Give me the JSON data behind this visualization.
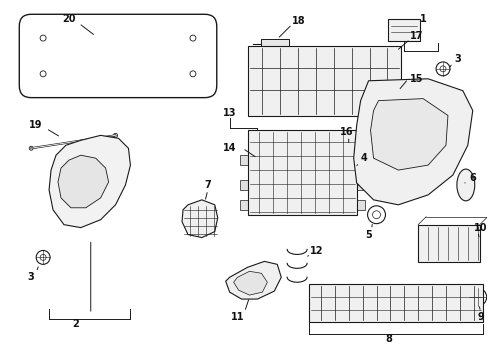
{
  "background_color": "#ffffff",
  "line_color": "#1a1a1a",
  "text_color": "#111111",
  "fig_width": 4.89,
  "fig_height": 3.6,
  "dpi": 100
}
